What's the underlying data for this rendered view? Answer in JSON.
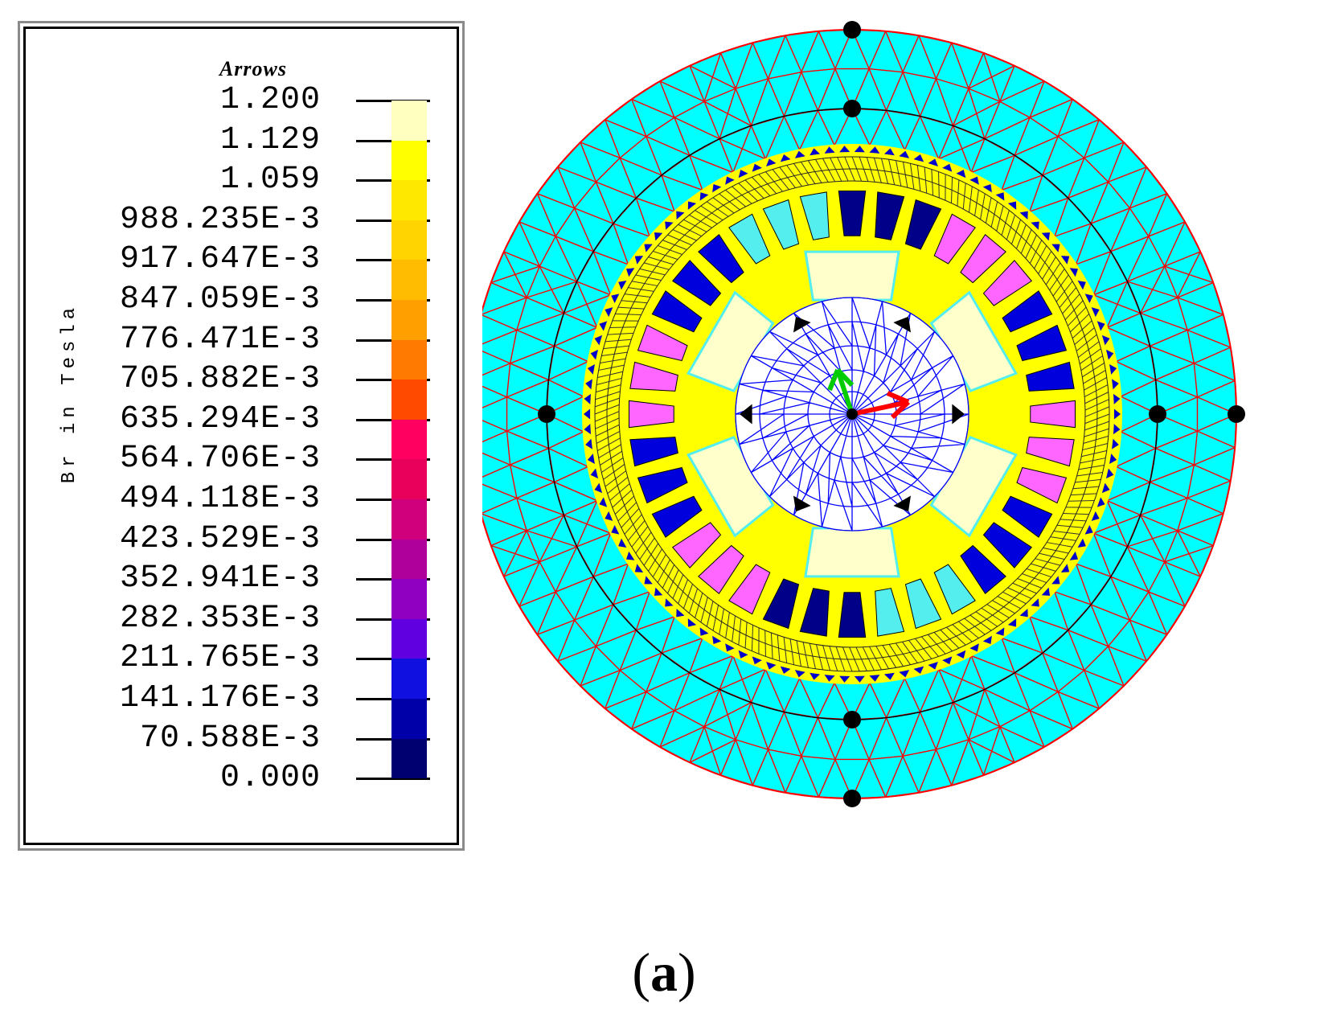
{
  "legend": {
    "title": "Arrows",
    "axis_label": "Br in Tesla",
    "ticks": [
      "1.200",
      "1.129",
      "1.059",
      "988.235E-3",
      "917.647E-3",
      "847.059E-3",
      "776.471E-3",
      "705.882E-3",
      "635.294E-3",
      "564.706E-3",
      "494.118E-3",
      "423.529E-3",
      "352.941E-3",
      "282.353E-3",
      "211.765E-3",
      "141.176E-3",
      "70.588E-3",
      "0.000"
    ],
    "colors": [
      "#ffffc0",
      "#ffff00",
      "#ffe800",
      "#ffd400",
      "#ffbc00",
      "#ffa000",
      "#ff7a00",
      "#ff4a00",
      "#ff0060",
      "#e8005a",
      "#d0007c",
      "#b0009c",
      "#9000c0",
      "#6000e0",
      "#1010e0",
      "#0000a8",
      "#000070"
    ]
  },
  "caption": {
    "open": "(",
    "label": "a",
    "close": ")"
  },
  "diagram": {
    "colors": {
      "stator": "#00ffff",
      "mesh_outer": "#ff0000",
      "mesh_inner": "#0000ff",
      "gap_fill": "#ffff00",
      "slot_pink": "#ff66ff",
      "slot_blue": "#0000dd",
      "slot_cyan": "#55eeee",
      "slot_navy": "#000088",
      "magnet_cream": "#ffffcc",
      "rotor_core": "#ffffff"
    },
    "arrow_colors": [
      "#00cc00",
      "#ff0000"
    ]
  }
}
